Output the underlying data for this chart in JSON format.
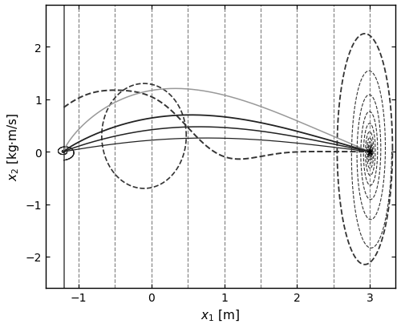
{
  "xlim": [
    -1.45,
    3.35
  ],
  "ylim": [
    -2.6,
    2.8
  ],
  "xticks": [
    -1,
    0,
    1,
    2,
    3
  ],
  "yticks": [
    -2,
    -1,
    0,
    1,
    2
  ],
  "xlabel": "$x_1$ [m]",
  "ylabel": "$x_2$ [kg$\\cdot$m/s]",
  "background_color": "#ffffff",
  "target_x": 3.0,
  "target_y": 0.0,
  "solid_vline_x": -1.2,
  "dashed_vline_positions": [
    -1.0,
    -0.5,
    0.0,
    0.5,
    1.0,
    1.5,
    2.0,
    2.5,
    3.0
  ],
  "vline_color": "#888888",
  "vline_lw": 0.9,
  "solid_vline_color": "#555555",
  "solid_vline_lw": 1.2,
  "traj_color_dark": "#222222",
  "traj_color_mid": "#555555",
  "traj_color_light": "#999999",
  "dashed_color": "#333333"
}
